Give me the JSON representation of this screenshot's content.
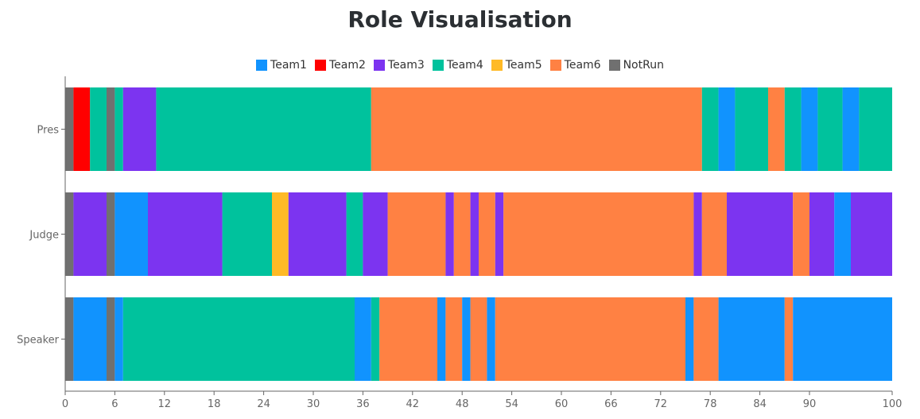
{
  "chart_data": {
    "type": "bar",
    "orientation": "horizontal",
    "stacked": true,
    "title": "Role Visualisation",
    "categories": [
      "Pres",
      "Judge",
      "Speaker"
    ],
    "xlim": [
      0,
      100
    ],
    "x_ticks": [
      "0",
      "6",
      "12",
      "18",
      "24",
      "30",
      "36",
      "42",
      "48",
      "54",
      "60",
      "66",
      "72",
      "78",
      "84",
      "90",
      "100"
    ],
    "x_tick_values": [
      0,
      6,
      12,
      18,
      24,
      30,
      36,
      42,
      48,
      54,
      60,
      66,
      72,
      78,
      84,
      90,
      100
    ],
    "legend_position": "top-center",
    "grid": false,
    "legend": [
      {
        "name": "Team1",
        "color": "#1193fe"
      },
      {
        "name": "Team2",
        "color": "#ff0000"
      },
      {
        "name": "Team3",
        "color": "#7c34f0"
      },
      {
        "name": "Team4",
        "color": "#00c29d"
      },
      {
        "name": "Team5",
        "color": "#ffba26"
      },
      {
        "name": "Team6",
        "color": "#ff8143"
      },
      {
        "name": "NotRun",
        "color": "#707070"
      }
    ],
    "bars": [
      {
        "category": "Pres",
        "segments": [
          {
            "team": "NotRun",
            "start": 0,
            "end": 1
          },
          {
            "team": "Team2",
            "start": 1,
            "end": 3
          },
          {
            "team": "Team4",
            "start": 3,
            "end": 5
          },
          {
            "team": "NotRun",
            "start": 5,
            "end": 6
          },
          {
            "team": "Team4",
            "start": 6,
            "end": 7
          },
          {
            "team": "Team3",
            "start": 7,
            "end": 11
          },
          {
            "team": "Team4",
            "start": 11,
            "end": 37
          },
          {
            "team": "Team6",
            "start": 37,
            "end": 77
          },
          {
            "team": "Team4",
            "start": 77,
            "end": 79
          },
          {
            "team": "Team1",
            "start": 79,
            "end": 81
          },
          {
            "team": "Team4",
            "start": 81,
            "end": 85
          },
          {
            "team": "Team6",
            "start": 85,
            "end": 87
          },
          {
            "team": "Team4",
            "start": 87,
            "end": 89
          },
          {
            "team": "Team1",
            "start": 89,
            "end": 91
          },
          {
            "team": "Team4",
            "start": 91,
            "end": 94
          },
          {
            "team": "Team1",
            "start": 94,
            "end": 96
          },
          {
            "team": "Team4",
            "start": 96,
            "end": 100
          }
        ]
      },
      {
        "category": "Judge",
        "segments": [
          {
            "team": "NotRun",
            "start": 0,
            "end": 1
          },
          {
            "team": "Team3",
            "start": 1,
            "end": 5
          },
          {
            "team": "NotRun",
            "start": 5,
            "end": 6
          },
          {
            "team": "Team1",
            "start": 6,
            "end": 10
          },
          {
            "team": "Team3",
            "start": 10,
            "end": 19
          },
          {
            "team": "Team4",
            "start": 19,
            "end": 25
          },
          {
            "team": "Team5",
            "start": 25,
            "end": 27
          },
          {
            "team": "Team3",
            "start": 27,
            "end": 34
          },
          {
            "team": "Team4",
            "start": 34,
            "end": 36
          },
          {
            "team": "Team3",
            "start": 36,
            "end": 39
          },
          {
            "team": "Team6",
            "start": 39,
            "end": 46
          },
          {
            "team": "Team3",
            "start": 46,
            "end": 47
          },
          {
            "team": "Team6",
            "start": 47,
            "end": 49
          },
          {
            "team": "Team3",
            "start": 49,
            "end": 50
          },
          {
            "team": "Team6",
            "start": 50,
            "end": 52
          },
          {
            "team": "Team3",
            "start": 52,
            "end": 53
          },
          {
            "team": "Team6",
            "start": 53,
            "end": 76
          },
          {
            "team": "Team3",
            "start": 76,
            "end": 77
          },
          {
            "team": "Team6",
            "start": 77,
            "end": 80
          },
          {
            "team": "Team3",
            "start": 80,
            "end": 88
          },
          {
            "team": "Team6",
            "start": 88,
            "end": 90
          },
          {
            "team": "Team3",
            "start": 90,
            "end": 93
          },
          {
            "team": "Team1",
            "start": 93,
            "end": 95
          },
          {
            "team": "Team3",
            "start": 95,
            "end": 100
          }
        ]
      },
      {
        "category": "Speaker",
        "segments": [
          {
            "team": "NotRun",
            "start": 0,
            "end": 1
          },
          {
            "team": "Team1",
            "start": 1,
            "end": 5
          },
          {
            "team": "NotRun",
            "start": 5,
            "end": 6
          },
          {
            "team": "Team1",
            "start": 6,
            "end": 7
          },
          {
            "team": "Team4",
            "start": 7,
            "end": 35
          },
          {
            "team": "Team1",
            "start": 35,
            "end": 37
          },
          {
            "team": "Team4",
            "start": 37,
            "end": 38
          },
          {
            "team": "Team6",
            "start": 38,
            "end": 45
          },
          {
            "team": "Team1",
            "start": 45,
            "end": 46
          },
          {
            "team": "Team6",
            "start": 46,
            "end": 48
          },
          {
            "team": "Team1",
            "start": 48,
            "end": 49
          },
          {
            "team": "Team6",
            "start": 49,
            "end": 51
          },
          {
            "team": "Team1",
            "start": 51,
            "end": 52
          },
          {
            "team": "Team6",
            "start": 52,
            "end": 75
          },
          {
            "team": "Team1",
            "start": 75,
            "end": 76
          },
          {
            "team": "Team6",
            "start": 76,
            "end": 79
          },
          {
            "team": "Team1",
            "start": 79,
            "end": 87
          },
          {
            "team": "Team6",
            "start": 87,
            "end": 88
          },
          {
            "team": "Team1",
            "start": 88,
            "end": 100
          }
        ]
      }
    ]
  }
}
